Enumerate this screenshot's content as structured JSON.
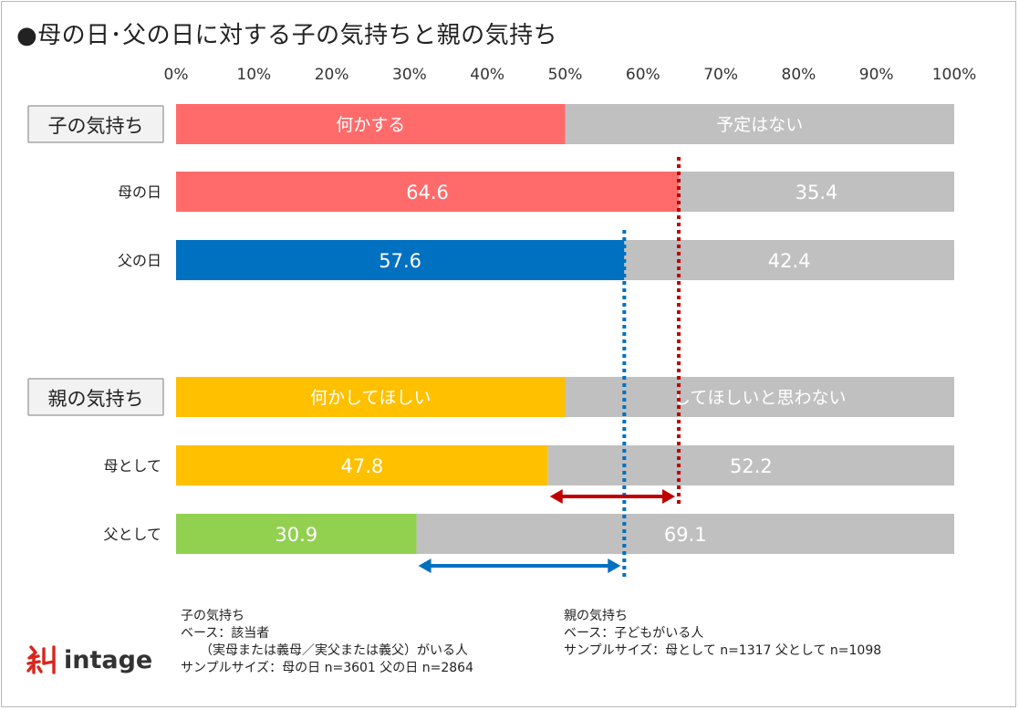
{
  "title": "●母の日･父の日に対する子の気持ちと親の気持ち",
  "colors": {
    "mother_child": "#ff6b6b",
    "father_child": "#0070c0",
    "mother_parent": "#ffc000",
    "father_parent": "#92d050",
    "gray": "#c0c0c0",
    "red_line": "#c00000",
    "blue_line": "#0070c0"
  },
  "chart_data": {
    "type": "bar",
    "orientation": "horizontal",
    "stacked": true,
    "xlim": [
      0,
      100
    ],
    "ticks": [
      "0%",
      "10%",
      "20%",
      "30%",
      "40%",
      "50%",
      "60%",
      "70%",
      "80%",
      "90%",
      "100%"
    ],
    "groups": [
      {
        "label": "子の気持ち",
        "legend": [
          {
            "name": "何かする",
            "value": 50,
            "color": "#ff6b6b"
          },
          {
            "name": "予定はない",
            "value": 50,
            "color": "#c0c0c0"
          }
        ],
        "rows": [
          {
            "label": "母の日",
            "values": [
              64.6,
              35.4
            ],
            "labels": [
              "64.6",
              "35.4"
            ],
            "colors": [
              "#ff6b6b",
              "#c0c0c0"
            ]
          },
          {
            "label": "父の日",
            "values": [
              57.6,
              42.4
            ],
            "labels": [
              "57.6",
              "42.4"
            ],
            "colors": [
              "#0070c0",
              "#c0c0c0"
            ]
          }
        ]
      },
      {
        "label": "親の気持ち",
        "legend": [
          {
            "name": "何かしてほしい",
            "value": 50,
            "color": "#ffc000"
          },
          {
            "name": "してほしいと思わない",
            "value": 50,
            "color": "#c0c0c0"
          }
        ],
        "rows": [
          {
            "label": "母として",
            "values": [
              47.8,
              52.2
            ],
            "labels": [
              "47.8",
              "52.2"
            ],
            "colors": [
              "#ffc000",
              "#c0c0c0"
            ]
          },
          {
            "label": "父として",
            "values": [
              30.9,
              69.1
            ],
            "labels": [
              "30.9",
              "69.1"
            ],
            "colors": [
              "#92d050",
              "#c0c0c0"
            ]
          }
        ]
      }
    ],
    "reference_lines": [
      {
        "value": 64.6,
        "color": "#c00000",
        "style": "dotted"
      },
      {
        "value": 57.6,
        "color": "#0070c0",
        "style": "dotted"
      }
    ],
    "gap_arrows": [
      {
        "from": 47.8,
        "to": 64.6,
        "color": "#c00000"
      },
      {
        "from": 30.9,
        "to": 57.6,
        "color": "#0070c0"
      }
    ]
  },
  "notes": {
    "child": {
      "heading": "子の気持ち",
      "base": "ベース：該当者",
      "base_detail": "　　（実母または義母／実父または義父）がいる人",
      "sample": "サンプルサイズ：母の日 n=3601 父の日 n=2864"
    },
    "parent": {
      "heading": "親の気持ち",
      "base": "ベース：子どもがいる人",
      "sample": "サンプルサイズ：母として n=1317 父として n=1098"
    }
  },
  "logo": {
    "text": "intage"
  }
}
